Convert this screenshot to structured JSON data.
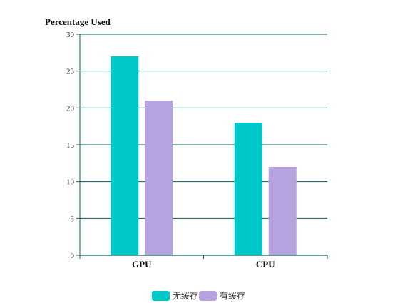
{
  "chart_data": {
    "type": "bar",
    "ylabel": "Percentage Used",
    "xlabel": "",
    "categories": [
      "GPU",
      "CPU"
    ],
    "series": [
      {
        "name": "无缓存",
        "values": [
          27,
          18
        ],
        "color": "#00c8c8"
      },
      {
        "name": "有缓存",
        "values": [
          21,
          12
        ],
        "color": "#b6a2de"
      }
    ],
    "ylim": [
      0,
      30
    ],
    "yticks": [
      0,
      5,
      10,
      15,
      20,
      25,
      30
    ],
    "grid": true,
    "legend_position": "bottom-center",
    "axis_color": "#0b5c5c"
  }
}
